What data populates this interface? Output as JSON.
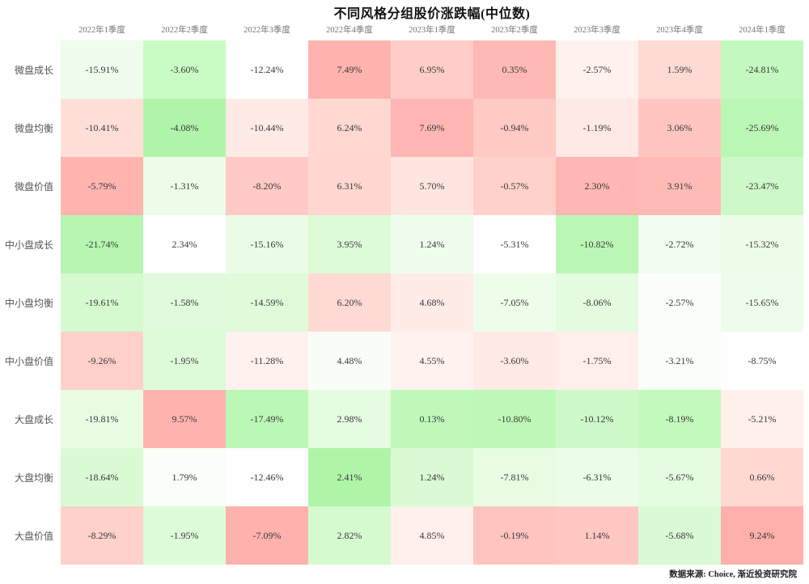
{
  "title": "不同风格分组股价涨跌幅(中位数)",
  "source": "数据来源: Choice, 渐近投资研究院",
  "chart_data": {
    "type": "heatmap",
    "title": "不同风格分组股价涨跌幅(中位数)",
    "value_format": "percent",
    "legend": "none",
    "colorscale_hint": {
      "high": "#ffb3af",
      "mid": "#ffffff",
      "low": "#aff5a9",
      "note": "red = relatively high within column, green = relatively low"
    },
    "columns": [
      "2022年1季度",
      "2022年2季度",
      "2022年3季度",
      "2022年4季度",
      "2023年1季度",
      "2023年2季度",
      "2023年3季度",
      "2023年4季度",
      "2024年1季度"
    ],
    "rows": [
      "微盘成长",
      "微盘均衡",
      "微盘价值",
      "中小盘成长",
      "中小盘均衡",
      "中小盘价值",
      "大盘成长",
      "大盘均衡",
      "大盘价值"
    ],
    "values": [
      [
        -15.91,
        -3.6,
        -12.24,
        7.49,
        6.95,
        0.35,
        -2.57,
        1.59,
        -24.81
      ],
      [
        -10.41,
        -4.08,
        -10.44,
        6.24,
        7.69,
        -0.94,
        -1.19,
        3.06,
        -25.69
      ],
      [
        -5.79,
        -1.31,
        -8.2,
        6.31,
        5.7,
        -0.57,
        2.3,
        3.91,
        -23.47
      ],
      [
        -21.74,
        2.34,
        -15.16,
        3.95,
        1.24,
        -5.31,
        -10.82,
        -2.72,
        -15.32
      ],
      [
        -19.61,
        -1.58,
        -14.59,
        6.2,
        4.68,
        -7.05,
        -8.06,
        -2.57,
        -15.65
      ],
      [
        -9.26,
        -1.95,
        -11.28,
        4.48,
        4.55,
        -3.6,
        -1.75,
        -3.21,
        -8.75
      ],
      [
        -19.81,
        9.57,
        -17.49,
        2.98,
        0.13,
        -10.8,
        -10.12,
        -8.19,
        -5.21
      ],
      [
        -18.64,
        1.79,
        -12.46,
        2.41,
        1.24,
        -7.81,
        -6.31,
        -5.67,
        0.66
      ],
      [
        -8.29,
        -1.95,
        -7.09,
        2.82,
        4.85,
        -0.19,
        1.14,
        -5.68,
        9.24
      ]
    ],
    "cell_colors": [
      [
        "#effdec",
        "#c9fbc4",
        "#fefefe",
        "#ffb3af",
        "#ffcdc8",
        "#ffb9b5",
        "#fff2ee",
        "#ffd9d3",
        "#c3f9be"
      ],
      [
        "#ffded8",
        "#aff5a9",
        "#ffebe6",
        "#ffd8d2",
        "#ffb6b2",
        "#ffc9c4",
        "#ffe9e4",
        "#ffc6c1",
        "#baf7b4"
      ],
      [
        "#ffb4b0",
        "#ecfce9",
        "#ffcac5",
        "#ffd6d0",
        "#ffe5df",
        "#ffd1cb",
        "#ffb7b3",
        "#ffbab6",
        "#cdf9c8"
      ],
      [
        "#b6f6b0",
        "#fefefe",
        "#eafce6",
        "#ddfbd7",
        "#effdec",
        "#fdfefd",
        "#baf7b4",
        "#f1fdee",
        "#ecfce9"
      ],
      [
        "#d5facf",
        "#e0fbdb",
        "#dffbda",
        "#ffdad4",
        "#ffece7",
        "#edfdea",
        "#e4fbdf",
        "#fafefa",
        "#eefdeb"
      ],
      [
        "#ffd0ca",
        "#defbd9",
        "#fff1ed",
        "#f8fef7",
        "#fff2ef",
        "#ffeae5",
        "#ffeeea",
        "#f9fef8",
        "#fefefe"
      ],
      [
        "#e8fce4",
        "#ffb3af",
        "#bbf7b5",
        "#e6fce2",
        "#bff8b9",
        "#bef8b8",
        "#cdf9c8",
        "#c3f9bd",
        "#fff0ec"
      ],
      [
        "#dafad4",
        "#f9fef8",
        "#fefefe",
        "#aff5a8",
        "#d9fad3",
        "#e7fce3",
        "#ebfde8",
        "#e6fce2",
        "#ffd8d2"
      ],
      [
        "#ffd1cb",
        "#ddfbd8",
        "#ffb1ae",
        "#d6fad0",
        "#fff0ed",
        "#ffc4bf",
        "#ffc7c2",
        "#dafad5",
        "#ffafac"
      ]
    ]
  }
}
